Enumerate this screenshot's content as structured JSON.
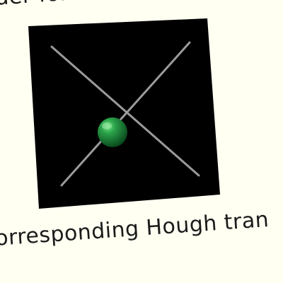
{
  "text": {
    "top_line": "der following input image",
    "bottom_line": "orresponding Hough tran"
  },
  "colors": {
    "background": "#fffff2",
    "board": "#000000",
    "lines": "#9b9b9b",
    "ball": "#1f8a3d"
  }
}
